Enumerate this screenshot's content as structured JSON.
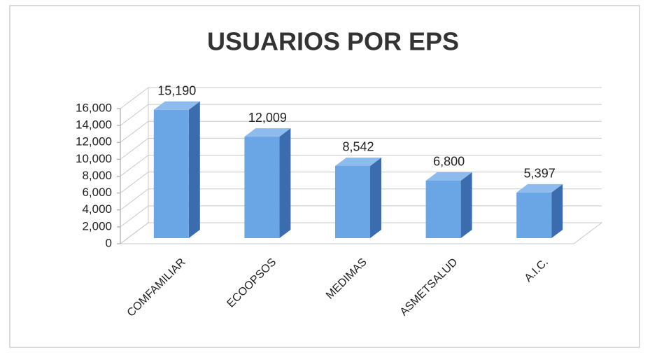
{
  "chart_data": {
    "type": "bar",
    "title": "USUARIOS POR EPS",
    "categories": [
      "COMFAMILIAR",
      "ECOOPSOS",
      "MEDIMAS",
      "ASMETSALUD",
      "A.I.C."
    ],
    "values": [
      15190,
      12009,
      8542,
      6800,
      5397
    ],
    "value_labels": [
      "15,190",
      "12,009",
      "8,542",
      "6,800",
      "5,397"
    ],
    "color": "#6aa6e6",
    "ylim": [
      0,
      16000
    ],
    "yticks": [
      0,
      {
        "value": 2000,
        "label": "2,000"
      },
      {
        "value": 4000,
        "label": "4,000"
      },
      {
        "value": 6000,
        "label": "6,000"
      },
      {
        "value": 8000,
        "label": "8,000"
      },
      {
        "value": 10000,
        "label": "10,000"
      },
      {
        "value": 12000,
        "label": "12,000"
      },
      {
        "value": 14000,
        "label": "14,000"
      },
      {
        "value": 16000,
        "label": "16,000"
      }
    ],
    "grid": true
  }
}
